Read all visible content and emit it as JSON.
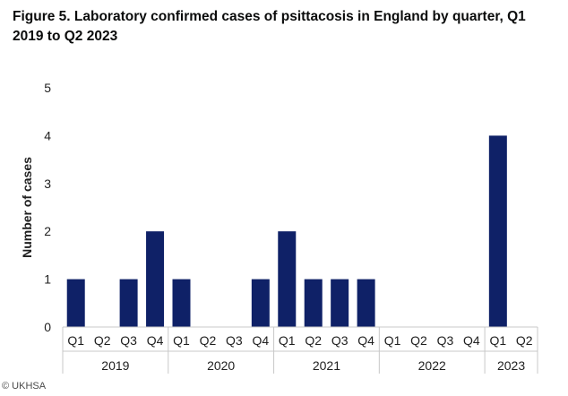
{
  "credit": "© UKHSA",
  "chart_data": {
    "type": "bar",
    "title": "Figure 5. Laboratory confirmed cases of psittacosis in England by quarter, Q1 2019 to Q2 2023",
    "ylabel": "Number of cases",
    "xlabel": "",
    "ylim": [
      0,
      5
    ],
    "yticks": [
      0,
      1,
      2,
      3,
      4,
      5
    ],
    "grid": false,
    "bar_color": "#0f2167",
    "categories": [
      "Q1",
      "Q2",
      "Q3",
      "Q4",
      "Q1",
      "Q2",
      "Q3",
      "Q4",
      "Q1",
      "Q2",
      "Q3",
      "Q4",
      "Q1",
      "Q2",
      "Q3",
      "Q4",
      "Q1",
      "Q2"
    ],
    "groups": [
      {
        "label": "2019",
        "count": 4
      },
      {
        "label": "2020",
        "count": 4
      },
      {
        "label": "2021",
        "count": 4
      },
      {
        "label": "2022",
        "count": 4
      },
      {
        "label": "2023",
        "count": 2
      }
    ],
    "values": [
      1,
      0,
      1,
      2,
      1,
      0,
      0,
      1,
      2,
      1,
      1,
      1,
      0,
      0,
      0,
      0,
      4,
      0
    ]
  }
}
